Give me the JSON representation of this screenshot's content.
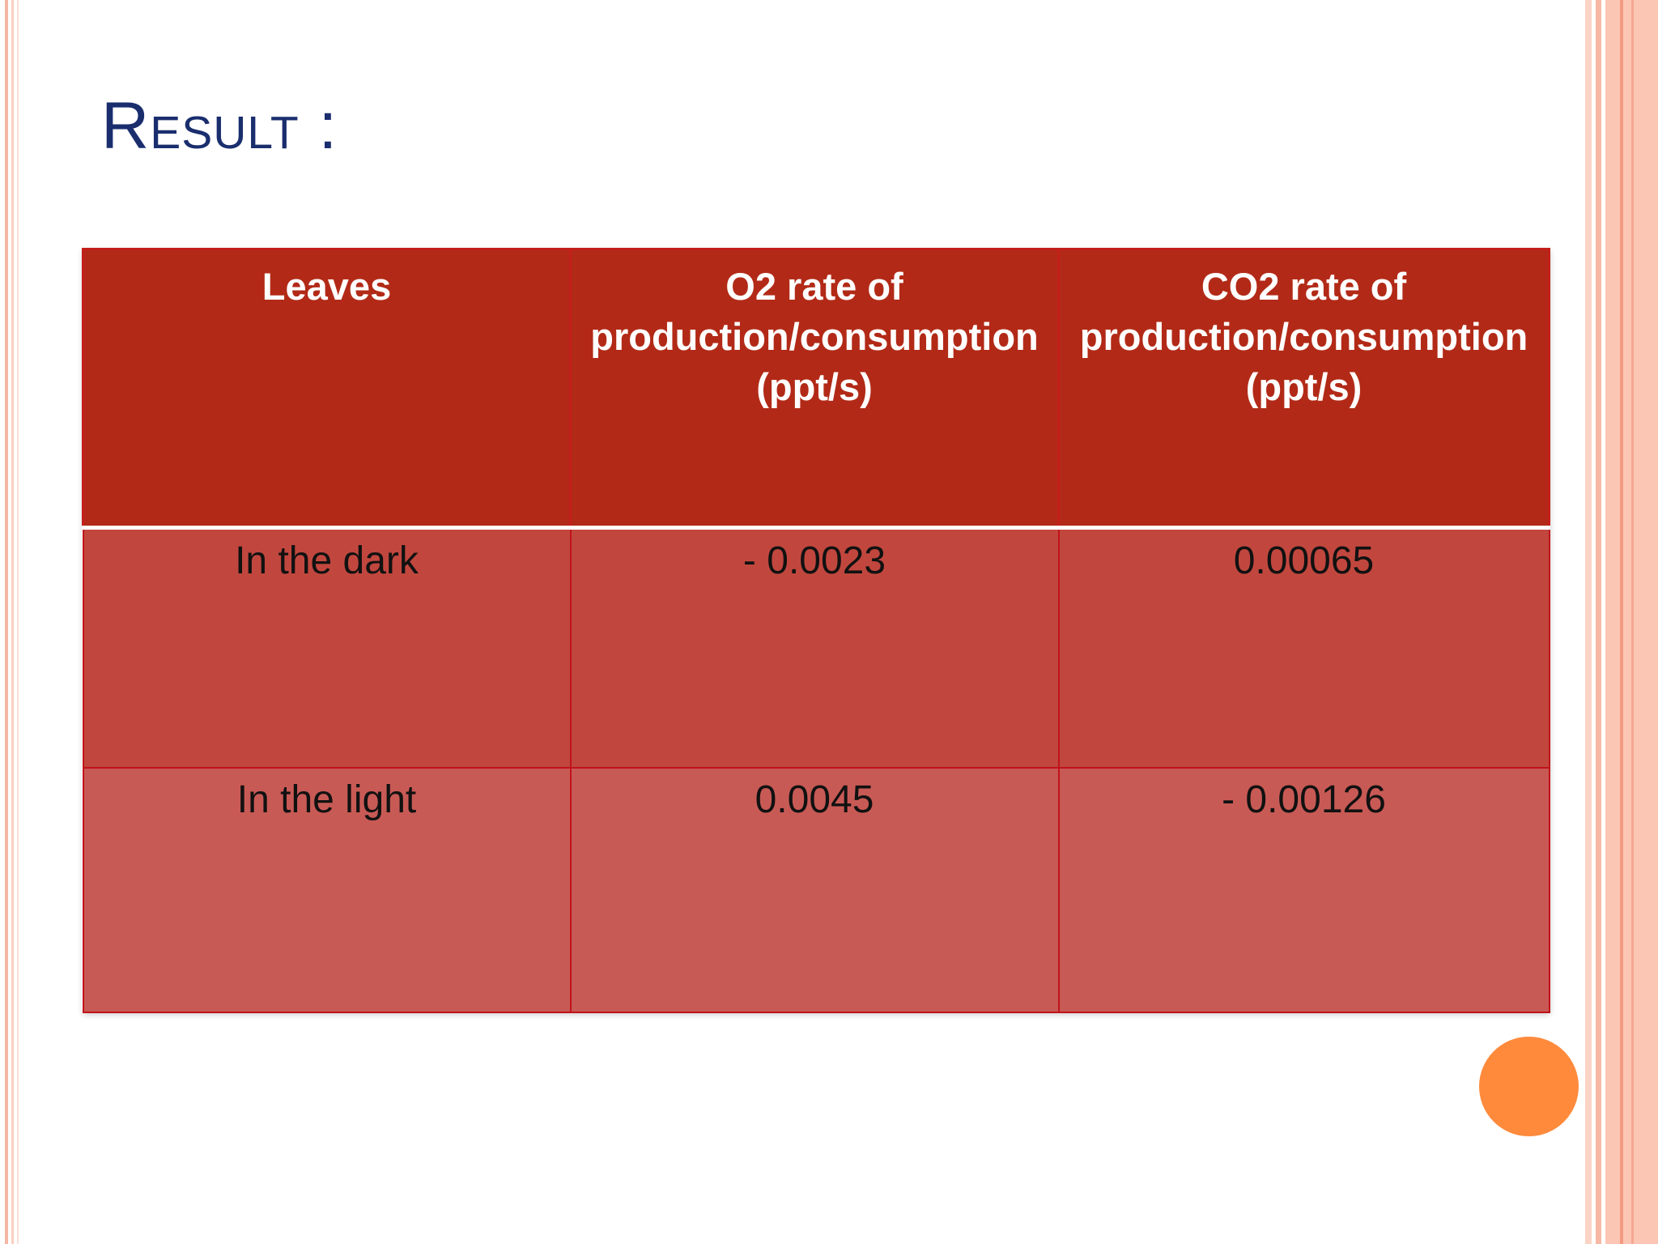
{
  "slide": {
    "title": "Result :"
  },
  "table": {
    "headers": [
      "Leaves",
      "O2 rate of production/consumption (ppt/s)",
      "CO2 rate of production/consumption (ppt/s)"
    ],
    "rows": [
      [
        "In the dark",
        "- 0.0023",
        "0.00065"
      ],
      [
        "In the light",
        "0.0045",
        "- 0.00126"
      ]
    ]
  },
  "colors": {
    "title": "#1a2e6e",
    "header_bg": "#b22a17",
    "row1_bg": "#c1473e",
    "row2_bg": "#c85a55",
    "accent_dot": "#ff8a3c"
  }
}
